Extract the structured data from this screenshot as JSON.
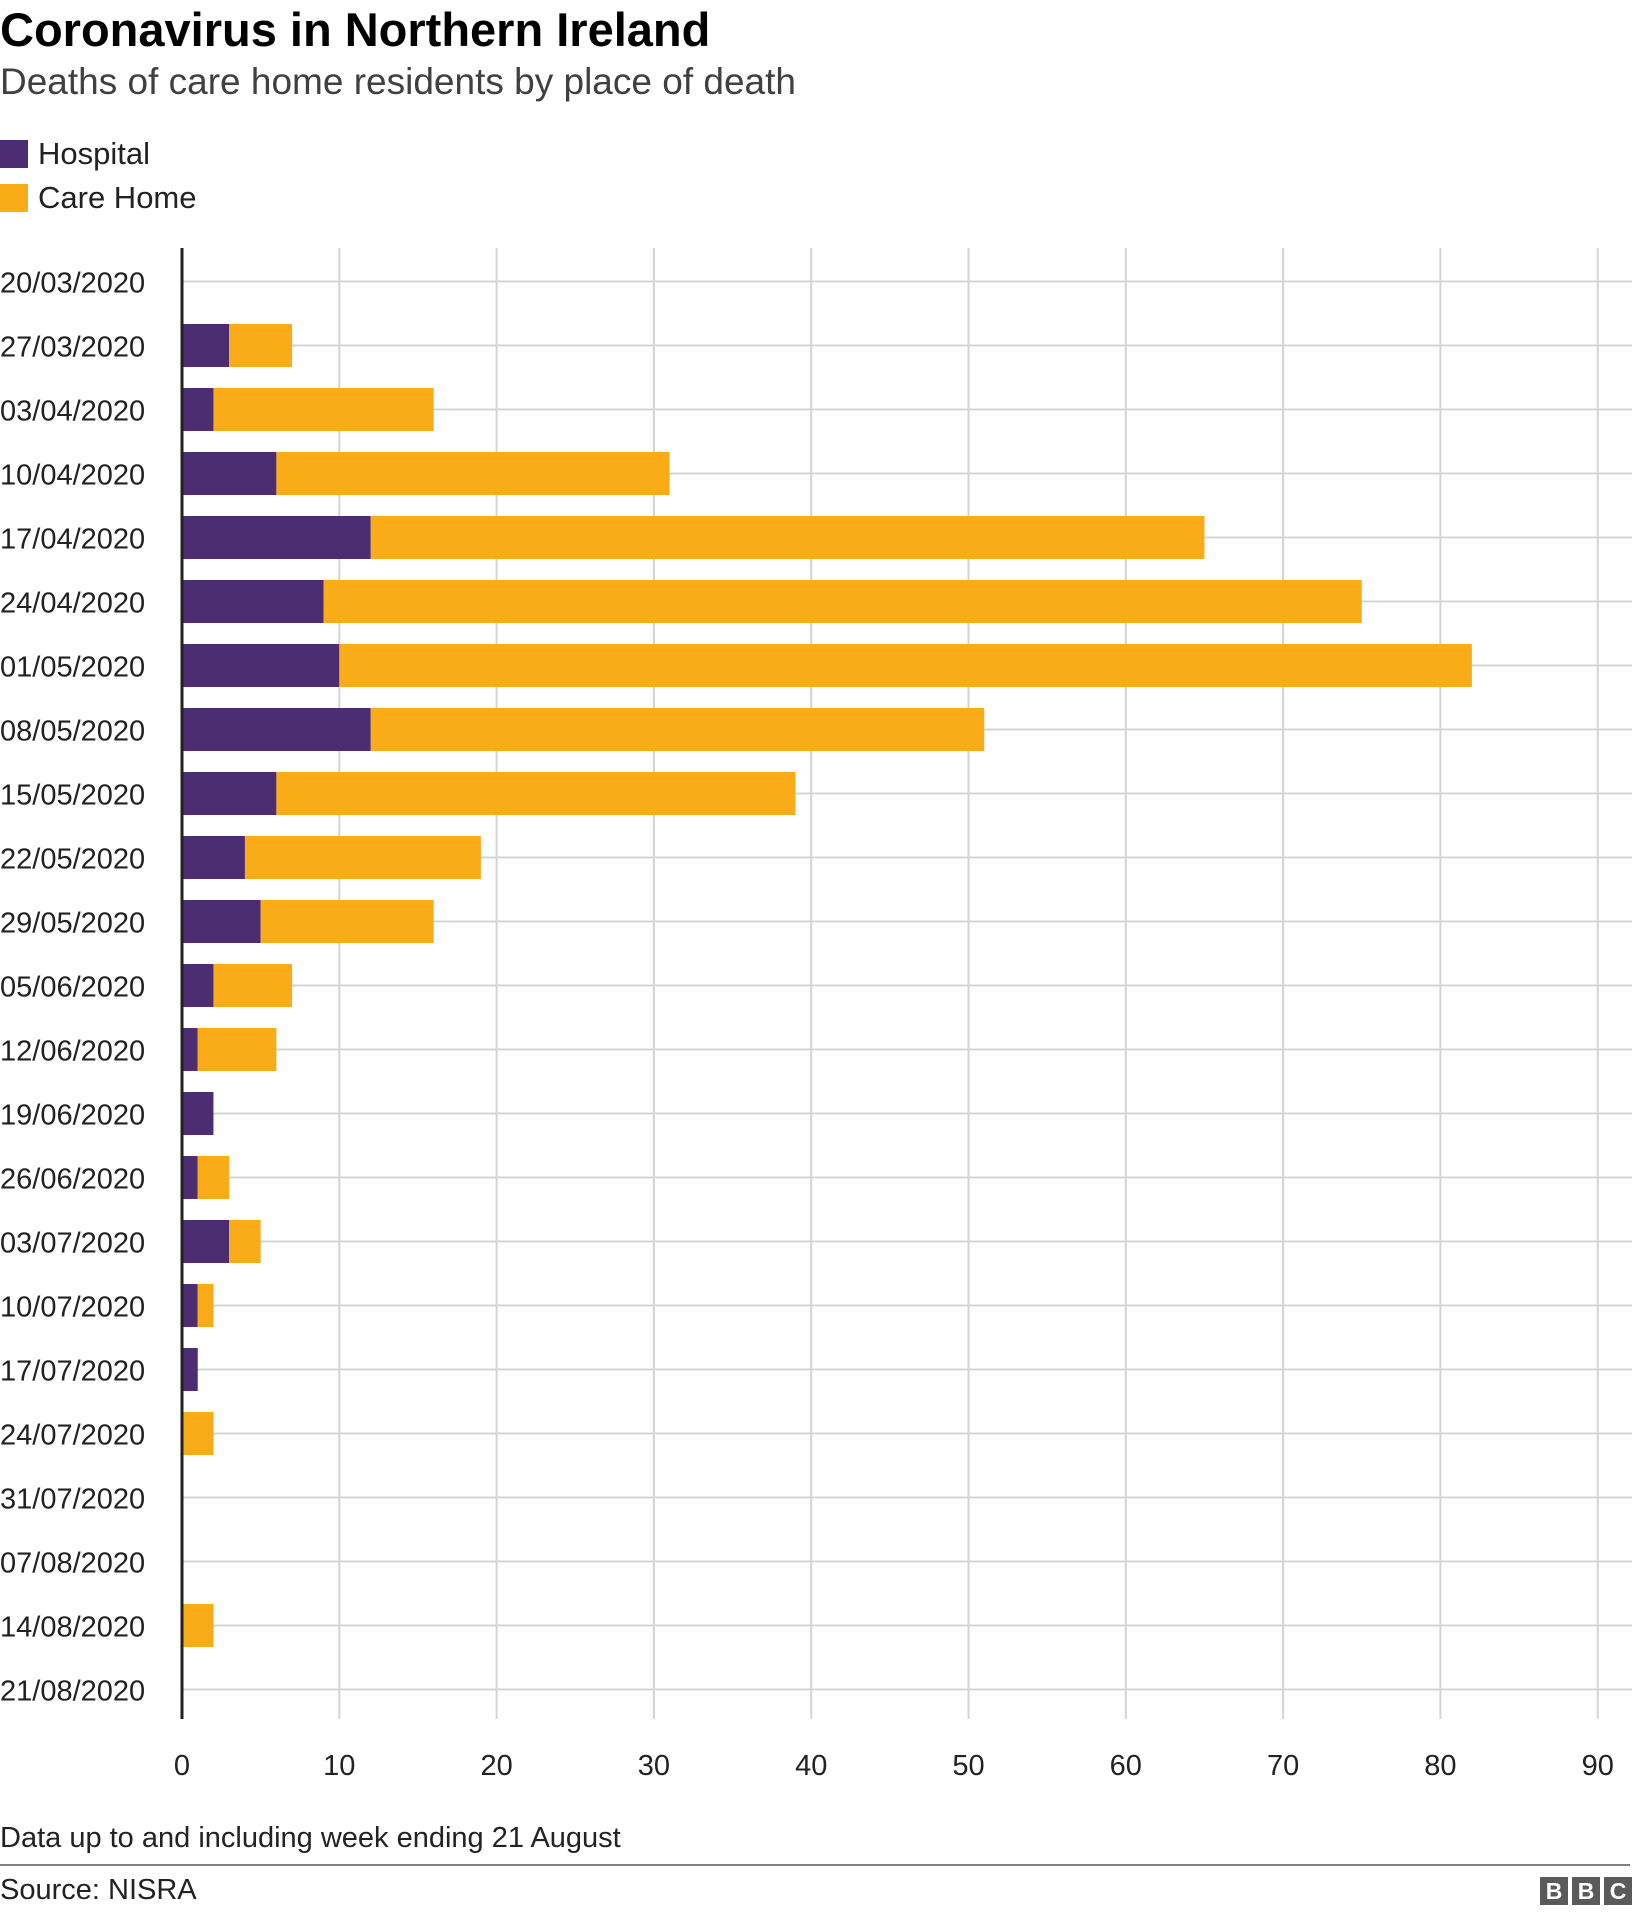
{
  "header": {
    "title": "Coronavirus in Northern Ireland",
    "subtitle": "Deaths of care home residents by place of death"
  },
  "legend": [
    {
      "label": "Hospital",
      "color": "#4b2d73"
    },
    {
      "label": "Care Home",
      "color": "#faab18"
    }
  ],
  "chart_data": {
    "type": "bar",
    "orientation": "horizontal",
    "stacked": true,
    "title": "Coronavirus in Northern Ireland",
    "subtitle": "Deaths of care home residents by place of death",
    "categories": [
      "20/03/2020",
      "27/03/2020",
      "03/04/2020",
      "10/04/2020",
      "17/04/2020",
      "24/04/2020",
      "01/05/2020",
      "08/05/2020",
      "15/05/2020",
      "22/05/2020",
      "29/05/2020",
      "05/06/2020",
      "12/06/2020",
      "19/06/2020",
      "26/06/2020",
      "03/07/2020",
      "10/07/2020",
      "17/07/2020",
      "24/07/2020",
      "31/07/2020",
      "07/08/2020",
      "14/08/2020",
      "21/08/2020"
    ],
    "series": [
      {
        "name": "Hospital",
        "color": "#4b2d73",
        "values": [
          0,
          3,
          2,
          6,
          12,
          9,
          10,
          12,
          6,
          4,
          5,
          2,
          1,
          2,
          1,
          3,
          1,
          1,
          0,
          0,
          0,
          0,
          0
        ]
      },
      {
        "name": "Care Home",
        "color": "#faab18",
        "values": [
          0,
          4,
          14,
          25,
          53,
          66,
          72,
          39,
          33,
          15,
          11,
          5,
          5,
          0,
          2,
          2,
          1,
          0,
          2,
          0,
          0,
          2,
          0
        ]
      }
    ],
    "xlim": [
      0,
      90
    ],
    "xticks": [
      0,
      10,
      20,
      30,
      40,
      50,
      60,
      70,
      80,
      90
    ],
    "grid": true,
    "legend_position": "top-left"
  },
  "footer": {
    "note": "Data up to and including week ending 21 August",
    "source": "Source: NISRA",
    "logo_letters": [
      "B",
      "B",
      "C"
    ]
  }
}
